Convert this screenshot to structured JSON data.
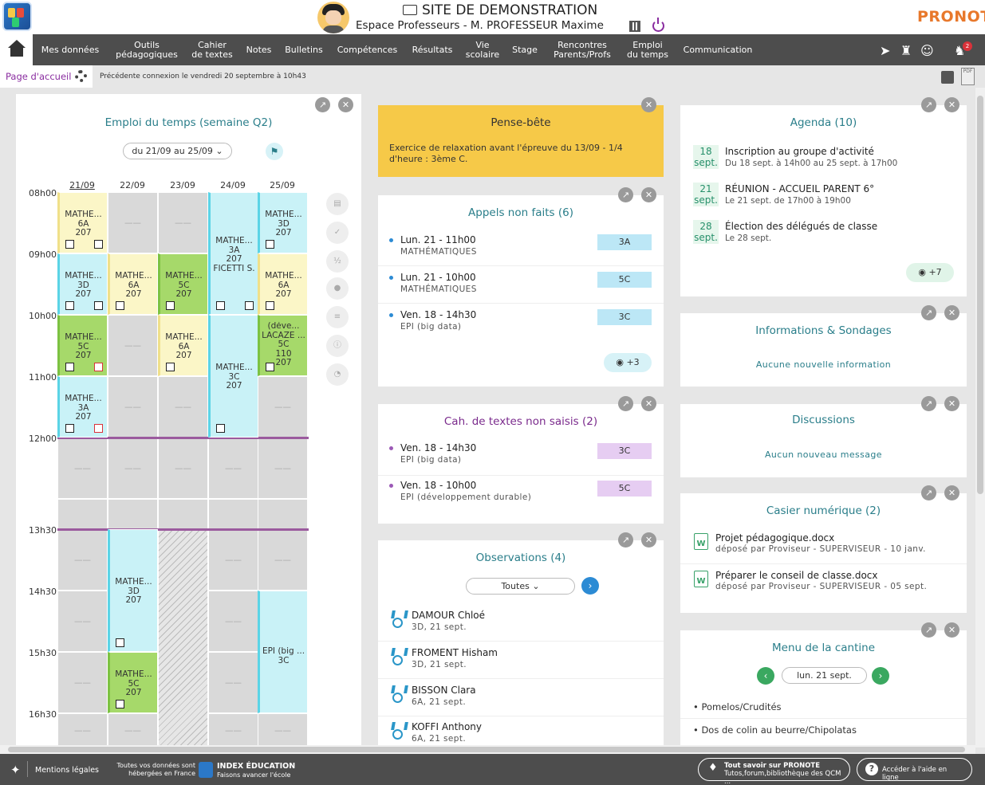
{
  "header": {
    "site_title": "SITE DE DEMONSTRATION",
    "space": "Espace Professeurs - M. PROFESSEUR Maxime",
    "brand": "PRONOTE"
  },
  "nav": {
    "items": [
      {
        "label": "Mes données"
      },
      {
        "label": "Outils\npédagogiques"
      },
      {
        "label": "Cahier\nde textes"
      },
      {
        "label": "Notes"
      },
      {
        "label": "Bulletins"
      },
      {
        "label": "Compétences"
      },
      {
        "label": "Résultats"
      },
      {
        "label": "Vie\nscolaire"
      },
      {
        "label": "Stage"
      },
      {
        "label": "Rencontres\nParents/Profs"
      },
      {
        "label": "Emploi\ndu temps"
      },
      {
        "label": "Communication"
      }
    ],
    "notification_count": "2"
  },
  "subbar": {
    "home_tab": "Page d'accueil",
    "last_connection": "Précédente connexion le vendredi 20 septembre à 10h43",
    "pdf_label": "PDF"
  },
  "timetable": {
    "title": "Emploi du temps (semaine Q2)",
    "week_select": "du 21/09 au 25/09",
    "days": [
      "21/09",
      "22/09",
      "23/09",
      "24/09",
      "25/09"
    ],
    "times": [
      "08h00",
      "09h00",
      "10h00",
      "11h00",
      "12h00",
      "13h30",
      "14h30",
      "15h30",
      "16h30"
    ],
    "empty_mark": "——",
    "courses": [
      {
        "text": "MATHÉ...\n6A\n207"
      },
      {
        "text": "MATHÉ...\n3D\n207"
      },
      {
        "text": "MATHÉ...\n5C\n207"
      },
      {
        "text": "MATHÉ...\n3A\n207"
      },
      {
        "text": "MATHÉ...\n6A\n207"
      },
      {
        "text": "MATHÉ...\n5C\n207"
      },
      {
        "text": "MATHÉ...\n6A\n207"
      },
      {
        "text": "MATHÉ...\n3A\n207\nFICETTI S."
      },
      {
        "text": "MATHÉ...\n3C\n207"
      },
      {
        "text": "MATHÉ...\n3D\n207"
      },
      {
        "text": "MATHÉ...\n6A\n207"
      },
      {
        "text": "(déve...\nLACAZE ...\n5C\n110\n207"
      },
      {
        "text": "MATHÉ...\n3D\n207"
      },
      {
        "text": "MATHÉ...\n5C\n207"
      },
      {
        "text": "EPI (big ...\n3C"
      }
    ]
  },
  "pense_bete": {
    "title": "Pense-bête",
    "text": "Exercice de relaxation avant l'épreuve du 13/09 - 1/4 d'heure : 3ème C."
  },
  "appels": {
    "title": "Appels non faits (6)",
    "items": [
      {
        "when": "Lun. 21 - 11h00",
        "subject": "MATHÉMATIQUES",
        "class": "3A"
      },
      {
        "when": "Lun. 21 - 10h00",
        "subject": "MATHÉMATIQUES",
        "class": "5C"
      },
      {
        "when": "Ven. 18 - 14h30",
        "subject": "EPI (big data)",
        "class": "3C"
      }
    ],
    "more": "+3"
  },
  "cahier": {
    "title": "Cah. de textes non saisis (2)",
    "items": [
      {
        "when": "Ven. 18 - 14h30",
        "subject": "EPI (big data)",
        "class": "3C"
      },
      {
        "when": "Ven. 18 - 10h00",
        "subject": "EPI (développement durable)",
        "class": "5C"
      }
    ]
  },
  "observations": {
    "title": "Observations (4)",
    "filter": "Toutes",
    "items": [
      {
        "name": "DAMOUR Chloé",
        "detail": "3D, 21 sept."
      },
      {
        "name": "FROMENT Hisham",
        "detail": "3D, 21 sept."
      },
      {
        "name": "BISSON Clara",
        "detail": "6A, 21 sept."
      },
      {
        "name": "KOFFI Anthony",
        "detail": "6A, 21 sept."
      }
    ]
  },
  "agenda": {
    "title": "Agenda (10)",
    "items": [
      {
        "day": "18",
        "month": "sept.",
        "title": "Inscription au groupe d'activité",
        "detail": "Du 18 sept. à 14h00 au 25 sept. à 17h00"
      },
      {
        "day": "21",
        "month": "sept.",
        "title": "RÉUNION - ACCUEIL PARENT 6°",
        "detail": "Le 21 sept. de 17h00 à 19h00"
      },
      {
        "day": "28",
        "month": "sept.",
        "title": "Élection des délégués de classe",
        "detail": "Le 28 sept."
      }
    ],
    "more": "+7"
  },
  "infos": {
    "title": "Informations & Sondages",
    "empty": "Aucune nouvelle information"
  },
  "discussions": {
    "title": "Discussions",
    "empty": "Aucun nouveau message"
  },
  "casier": {
    "title": "Casier numérique (2)",
    "items": [
      {
        "file": "Projet pédagogique.docx",
        "detail": "déposé par Proviseur - SUPERVISEUR - 10 janv."
      },
      {
        "file": "Préparer le conseil de classe.docx",
        "detail": "déposé par Proviseur - SUPERVISEUR - 05 sept."
      }
    ]
  },
  "cantine": {
    "title": "Menu de la cantine",
    "date": "lun. 21 sept.",
    "items": [
      "Pomelos/Crudités",
      "Dos de colin au beurre/Chipolatas"
    ]
  },
  "footer": {
    "legal": "Mentions légales",
    "hosted": "Toutes vos données sont\nhébergées en France",
    "company": "INDEX ÉDUCATION",
    "company_tagline": "Faisons avancer l'école",
    "about_title": "Tout savoir sur PRONOTE",
    "about_sub": "Tutos,forum,bibliothèque des QCM ...",
    "help": "Accéder à l'aide en ligne"
  },
  "colors": {
    "yellow": "#fbf6c7",
    "cyan": "#c9f2f7",
    "green": "#a6d96a",
    "gray": "#d9d9d9",
    "purple": "#7a2a8c",
    "teal": "#2a7e8a"
  }
}
